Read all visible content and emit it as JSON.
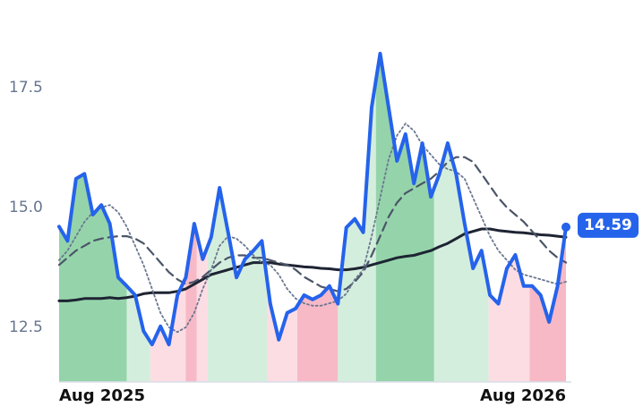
{
  "chart_data": {
    "type": "line",
    "x": [
      0,
      0.2,
      0.4,
      0.6,
      0.8,
      1,
      1.2,
      1.4,
      1.6,
      1.8,
      2,
      2.2,
      2.4,
      2.6,
      2.8,
      3,
      3.2,
      3.4,
      3.6,
      3.8,
      4,
      4.2,
      4.4,
      4.6,
      4.8,
      5,
      5.2,
      5.4,
      5.6,
      5.8,
      6,
      6.2,
      6.4,
      6.6,
      6.8,
      7,
      7.2,
      7.4,
      7.6,
      7.8,
      8,
      8.2,
      8.4,
      8.6,
      8.8,
      9,
      9.2,
      9.4,
      9.6,
      9.8,
      10,
      10.2,
      10.4,
      10.6,
      10.8,
      11,
      11.2,
      11.4,
      11.6,
      11.8,
      12
    ],
    "xlim": [
      0,
      12
    ],
    "xticks": [
      {
        "value": 0,
        "label": "Aug 2025"
      },
      {
        "value": 12,
        "label": "Aug 2026"
      }
    ],
    "ylim": [
      11.36,
      18.6
    ],
    "yticks": [
      12.5,
      {
        "value": 15,
        "label": "15.0"
      },
      17.5
    ],
    "series": [
      {
        "color": "#2563eb",
        "style": "solid",
        "width": 4,
        "values": [
          14.6,
          14.3,
          15.6,
          15.7,
          14.85,
          15.05,
          14.66,
          13.54,
          13.36,
          13.17,
          12.42,
          12.14,
          12.52,
          12.14,
          13.17,
          13.54,
          14.66,
          13.92,
          14.38,
          15.41,
          14.48,
          13.54,
          13.92,
          14.1,
          14.3,
          12.99,
          12.24,
          12.8,
          12.89,
          13.17,
          13.08,
          13.17,
          13.36,
          12.99,
          14.58,
          14.76,
          14.48,
          17.09,
          18.21,
          17.09,
          15.97,
          16.53,
          15.5,
          16.34,
          15.22,
          15.69,
          16.34,
          15.69,
          14.66,
          13.73,
          14.1,
          13.17,
          12.99,
          13.73,
          14.01,
          13.36,
          13.36,
          13.17,
          12.61,
          13.36,
          14.59
        ]
      },
      {
        "color": "#6b7790",
        "style": "dotted",
        "width": 1.8,
        "values": [
          13.9,
          14.1,
          14.4,
          14.7,
          14.9,
          15.0,
          15.05,
          14.9,
          14.6,
          14.2,
          13.8,
          13.3,
          12.8,
          12.5,
          12.4,
          12.5,
          12.8,
          13.3,
          13.7,
          14.2,
          14.4,
          14.35,
          14.2,
          14.0,
          13.85,
          13.8,
          13.6,
          13.3,
          13.1,
          13.0,
          12.95,
          12.95,
          13.0,
          13.05,
          13.2,
          13.5,
          13.7,
          14.4,
          15.2,
          16.0,
          16.5,
          16.75,
          16.6,
          16.3,
          16.1,
          15.9,
          15.8,
          15.75,
          15.6,
          15.2,
          14.8,
          14.4,
          14.1,
          13.9,
          13.7,
          13.6,
          13.55,
          13.5,
          13.45,
          13.4,
          13.45
        ]
      },
      {
        "color": "#4b5568",
        "style": "dashed",
        "width": 2.2,
        "values": [
          13.8,
          13.95,
          14.1,
          14.2,
          14.3,
          14.35,
          14.38,
          14.4,
          14.4,
          14.35,
          14.25,
          14.05,
          13.85,
          13.65,
          13.5,
          13.4,
          13.45,
          13.55,
          13.7,
          13.85,
          13.95,
          14.0,
          14.0,
          13.95,
          13.95,
          13.9,
          13.85,
          13.8,
          13.7,
          13.55,
          13.45,
          13.35,
          13.3,
          13.25,
          13.3,
          13.45,
          13.65,
          14.0,
          14.4,
          14.8,
          15.1,
          15.3,
          15.4,
          15.5,
          15.6,
          15.75,
          15.95,
          16.05,
          16.05,
          15.95,
          15.7,
          15.45,
          15.2,
          15.0,
          14.85,
          14.7,
          14.5,
          14.3,
          14.1,
          13.95,
          13.85
        ]
      },
      {
        "color": "#1e2433",
        "style": "solid",
        "width": 3,
        "values": [
          13.05,
          13.05,
          13.07,
          13.1,
          13.1,
          13.1,
          13.12,
          13.1,
          13.12,
          13.15,
          13.2,
          13.22,
          13.22,
          13.22,
          13.25,
          13.3,
          13.4,
          13.5,
          13.6,
          13.65,
          13.7,
          13.75,
          13.8,
          13.85,
          13.85,
          13.85,
          13.82,
          13.8,
          13.78,
          13.76,
          13.75,
          13.73,
          13.72,
          13.7,
          13.7,
          13.72,
          13.75,
          13.8,
          13.85,
          13.9,
          13.95,
          13.98,
          14.0,
          14.05,
          14.1,
          14.18,
          14.25,
          14.35,
          14.45,
          14.5,
          14.55,
          14.55,
          14.52,
          14.5,
          14.48,
          14.47,
          14.45,
          14.43,
          14.42,
          14.4,
          14.38
        ]
      }
    ],
    "regions": [
      {
        "xlim": [
          0,
          1.6
        ],
        "color": "#95d4aa"
      },
      {
        "xlim": [
          1.6,
          2.16
        ],
        "color": "#d4eedd"
      },
      {
        "xlim": [
          2.16,
          3.0
        ],
        "color": "#fddde4"
      },
      {
        "xlim": [
          3.0,
          3.26
        ],
        "color": "#f7b9c6"
      },
      {
        "xlim": [
          3.26,
          3.52
        ],
        "color": "#fddde4"
      },
      {
        "xlim": [
          3.52,
          4.92
        ],
        "color": "#d4eedd"
      },
      {
        "xlim": [
          4.92,
          5.64
        ],
        "color": "#fddde4"
      },
      {
        "xlim": [
          5.64,
          6.6
        ],
        "color": "#f7b9c6"
      },
      {
        "xlim": [
          6.6,
          7.5
        ],
        "color": "#d4eedd"
      },
      {
        "xlim": [
          7.5,
          8.88
        ],
        "color": "#95d4aa"
      },
      {
        "xlim": [
          8.88,
          10.17
        ],
        "color": "#d4eedd"
      },
      {
        "xlim": [
          10.17,
          11.14
        ],
        "color": "#fddde4"
      },
      {
        "xlim": [
          11.14,
          12
        ],
        "color": "#f7b9c6"
      }
    ],
    "badge_color": "#2563eb"
  }
}
